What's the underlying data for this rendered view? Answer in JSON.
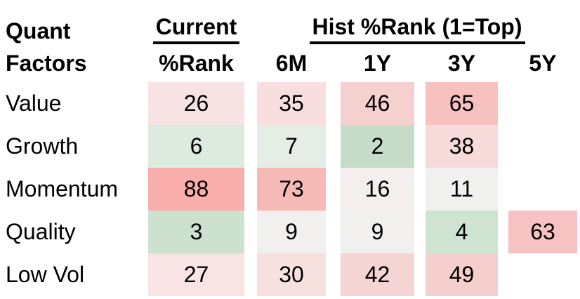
{
  "header": {
    "factor_title_line1": "Quant",
    "factor_title_line2": "Factors",
    "current_group_label": "Current",
    "current_sub_label": "%Rank",
    "hist_group_label": "Hist %Rank (1=Top)",
    "hist_col_labels": [
      "6M",
      "1Y",
      "3Y",
      "5Y"
    ]
  },
  "rows": [
    {
      "label": "Value",
      "cells": [
        {
          "value": "26",
          "bg": "#f7e3e3"
        },
        {
          "value": "35",
          "bg": "#f8dede"
        },
        {
          "value": "46",
          "bg": "#f6cfcf"
        },
        {
          "value": "65",
          "bg": "#f7c1c0"
        },
        {
          "value": "",
          "bg": ""
        }
      ]
    },
    {
      "label": "Growth",
      "cells": [
        {
          "value": "6",
          "bg": "#ddeade"
        },
        {
          "value": "7",
          "bg": "#e4eee4"
        },
        {
          "value": "2",
          "bg": "#c5ddc8"
        },
        {
          "value": "38",
          "bg": "#f6dbda"
        },
        {
          "value": "",
          "bg": ""
        }
      ]
    },
    {
      "label": "Momentum",
      "cells": [
        {
          "value": "88",
          "bg": "#f9aeab"
        },
        {
          "value": "73",
          "bg": "#f5b9b6"
        },
        {
          "value": "16",
          "bg": "#f4efee"
        },
        {
          "value": "11",
          "bg": "#f1f1f0"
        },
        {
          "value": "",
          "bg": ""
        }
      ]
    },
    {
      "label": "Quality",
      "cells": [
        {
          "value": "3",
          "bg": "#cce2cf"
        },
        {
          "value": "9",
          "bg": "#f2f0ef"
        },
        {
          "value": "9",
          "bg": "#f2f0ef"
        },
        {
          "value": "4",
          "bg": "#cee3d1"
        },
        {
          "value": "63",
          "bg": "#f6c2c2"
        }
      ]
    },
    {
      "label": "Low Vol",
      "cells": [
        {
          "value": "27",
          "bg": "#f7e4e3"
        },
        {
          "value": "30",
          "bg": "#f6e1df"
        },
        {
          "value": "42",
          "bg": "#f5d5d3"
        },
        {
          "value": "49",
          "bg": "#f4cfcd"
        },
        {
          "value": "",
          "bg": ""
        }
      ]
    }
  ],
  "chart_data": {
    "type": "heatmap",
    "title": "Hist %Rank (1=Top)",
    "row_header": "Quant Factors",
    "columns": [
      "Current %Rank",
      "6M",
      "1Y",
      "3Y",
      "5Y"
    ],
    "rows": [
      "Value",
      "Growth",
      "Momentum",
      "Quality",
      "Low Vol"
    ],
    "values": [
      [
        26,
        35,
        46,
        65,
        null
      ],
      [
        6,
        7,
        2,
        38,
        null
      ],
      [
        88,
        73,
        16,
        11,
        null
      ],
      [
        3,
        9,
        9,
        4,
        63
      ],
      [
        27,
        30,
        42,
        49,
        null
      ]
    ],
    "color_low": "#c5ddc8",
    "color_mid": "#f1f1f0",
    "color_high": "#f9aeab"
  }
}
